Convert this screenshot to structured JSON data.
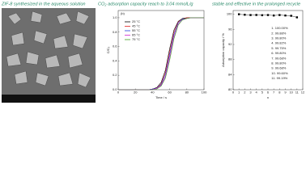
{
  "captions": [
    "ZIF-8 synthesized in the aqueous solution",
    "CO₂ adsorption capacity reach to 3.04 mmolL/g",
    "stable and effective in the prolonged recycle"
  ],
  "chart_data": [
    {
      "type": "line",
      "panel_label": "(b)",
      "x_label": "Time / s",
      "y_label": "C/C₀",
      "x": [
        0,
        5,
        10,
        15,
        20,
        25,
        30,
        35,
        40,
        45,
        50,
        55,
        60,
        65,
        70,
        75,
        80,
        85,
        90,
        95,
        100
      ],
      "xlim": [
        0,
        100
      ],
      "xticks": [
        0,
        20,
        40,
        60,
        80,
        100
      ],
      "ylim": [
        0,
        1.1
      ],
      "yticks": [
        {
          "value": 0,
          "label": "0.0"
        },
        {
          "value": 0.2,
          "label": "0.2"
        },
        {
          "value": 0.4,
          "label": "0.4"
        },
        {
          "value": 0.6,
          "label": "0.6"
        },
        {
          "value": 0.8,
          "label": "0.8"
        },
        {
          "value": 1,
          "label": "1.0"
        }
      ],
      "legend": "upper left",
      "series": [
        {
          "name": "25 °C",
          "color": "#000000",
          "values": [
            0,
            0,
            0,
            0,
            0,
            0,
            0,
            0,
            0.01,
            0.03,
            0.1,
            0.27,
            0.57,
            0.83,
            0.95,
            0.99,
            1,
            1,
            1,
            1,
            1
          ]
        },
        {
          "name": "45 °C",
          "color": "#e02020",
          "values": [
            0,
            0,
            0,
            0,
            0,
            0,
            0,
            0,
            0.01,
            0.02,
            0.08,
            0.24,
            0.53,
            0.8,
            0.94,
            0.98,
            1,
            1,
            1,
            1,
            1
          ]
        },
        {
          "name": "55 °C",
          "color": "#2040e0",
          "values": [
            0,
            0,
            0,
            0,
            0,
            0,
            0,
            0,
            0.01,
            0.02,
            0.07,
            0.21,
            0.49,
            0.77,
            0.93,
            0.98,
            0.99,
            1,
            1,
            1,
            1
          ]
        },
        {
          "name": "65 °C",
          "color": "#d020d0",
          "values": [
            0,
            0,
            0,
            0,
            0,
            0,
            0,
            0,
            0,
            0.02,
            0.06,
            0.18,
            0.45,
            0.74,
            0.91,
            0.97,
            0.99,
            1,
            1,
            1,
            1
          ]
        },
        {
          "name": "75 °C",
          "color": "#40a020",
          "values": [
            0,
            0,
            0,
            0,
            0,
            0,
            0,
            0,
            0,
            0.01,
            0.05,
            0.16,
            0.41,
            0.71,
            0.9,
            0.97,
            0.99,
            1,
            1,
            1,
            1
          ]
        }
      ]
    },
    {
      "type": "line",
      "markers": true,
      "x_label": "n",
      "y_label": "Adsorption capacity / %",
      "x": [
        1,
        2,
        3,
        4,
        5,
        6,
        7,
        8,
        9,
        10,
        11
      ],
      "xlim": [
        0,
        12
      ],
      "xticks": [
        0,
        1,
        2,
        3,
        4,
        5,
        6,
        7,
        8,
        9,
        10,
        11,
        12
      ],
      "ylim": [
        80,
        101
      ],
      "yticks": [
        80,
        84,
        88,
        92,
        96,
        100
      ],
      "series": [
        {
          "color": "#000000",
          "values": [
            100,
            99.88,
            99.8,
            99.82,
            99.75,
            99.8,
            99.68,
            99.8,
            99.68,
            99.6,
            99.19
          ],
          "value_labels": [
            "1. 100.00%",
            "2. 99.88%",
            "3. 99.80%",
            "4. 99.82%",
            "5. 99.75%",
            "6. 99.80%",
            "7. 99.68%",
            "8. 99.80%",
            "9. 99.68%",
            "10. 99.60%",
            "11. 99.19%"
          ]
        }
      ]
    }
  ]
}
